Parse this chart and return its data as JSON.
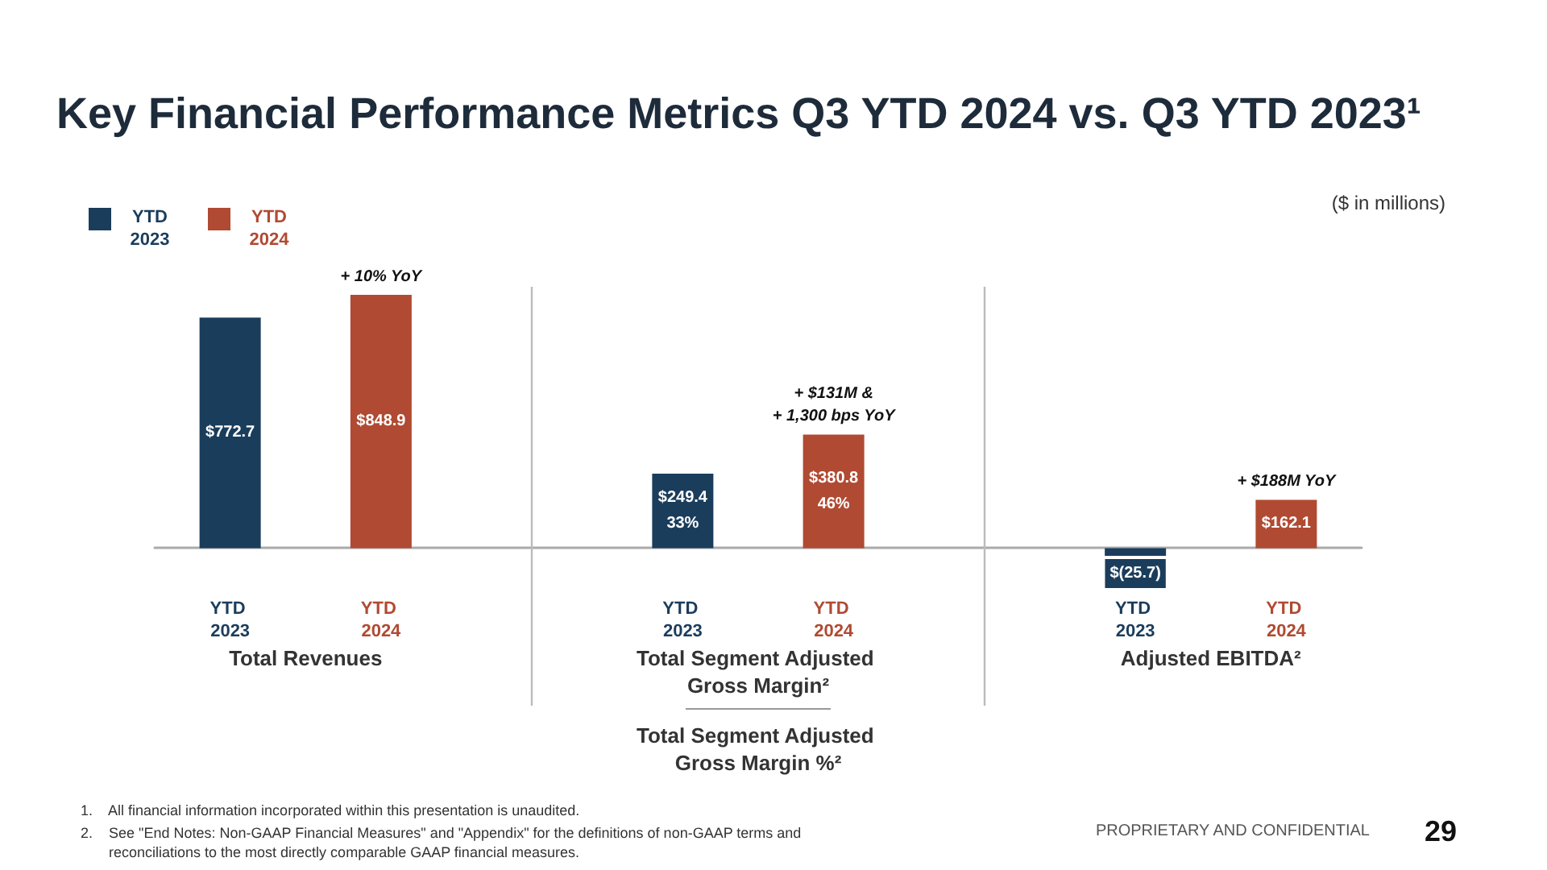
{
  "chart_data": {
    "type": "bar",
    "title": "Key Financial Performance Metrics Q3 YTD 2024 vs. Q3 YTD 2023¹",
    "subtitle": "($ in millions)",
    "categories": [
      "YTD 2023",
      "YTD 2024",
      null,
      "YTD 2023",
      "YTD 2024",
      null,
      "YTD 2023",
      "YTD 2024"
    ],
    "stacked": true,
    "series": [
      {
        "name": "YTD 2023",
        "color": "#1b3d5c",
        "values": [
          772.7,
          null,
          null,
          249.4,
          null,
          null,
          -25.7,
          null
        ],
        "value_labels": [
          "$772.7",
          null,
          null,
          "$249.4\n33%",
          null,
          null,
          "$(25.7)",
          null
        ]
      },
      {
        "name": "YTD 2024",
        "color": "#b04a32",
        "values": [
          null,
          848.9,
          null,
          null,
          380.8,
          null,
          null,
          162.1
        ],
        "value_labels": [
          null,
          "$848.9",
          null,
          null,
          "$380.8\n46%",
          null,
          null,
          "$162.1"
        ]
      }
    ],
    "legend": "top left",
    "annotations": [
      "+ 10% YoY",
      "+ $131M &\n+ 1,300 bps YoY",
      "+ $188M YoY",
      "Total Revenues",
      "Total Segment Adjusted Gross Margin²",
      "Adjusted EBITDA²",
      "Total Segment Adjusted Gross Margin %²",
      "1.    All financial information incorporated within this presentation is unaudited.",
      "2.    See \"End Notes: Non-GAAP Financial Measures\" and \"Appendix\" for the definitions of non-GAAP terms and\n       reconciliations to the most directly comparable GAAP financial measures.",
      "PROPRIETARY AND CONFIDENTIAL",
      "29"
    ]
  }
}
